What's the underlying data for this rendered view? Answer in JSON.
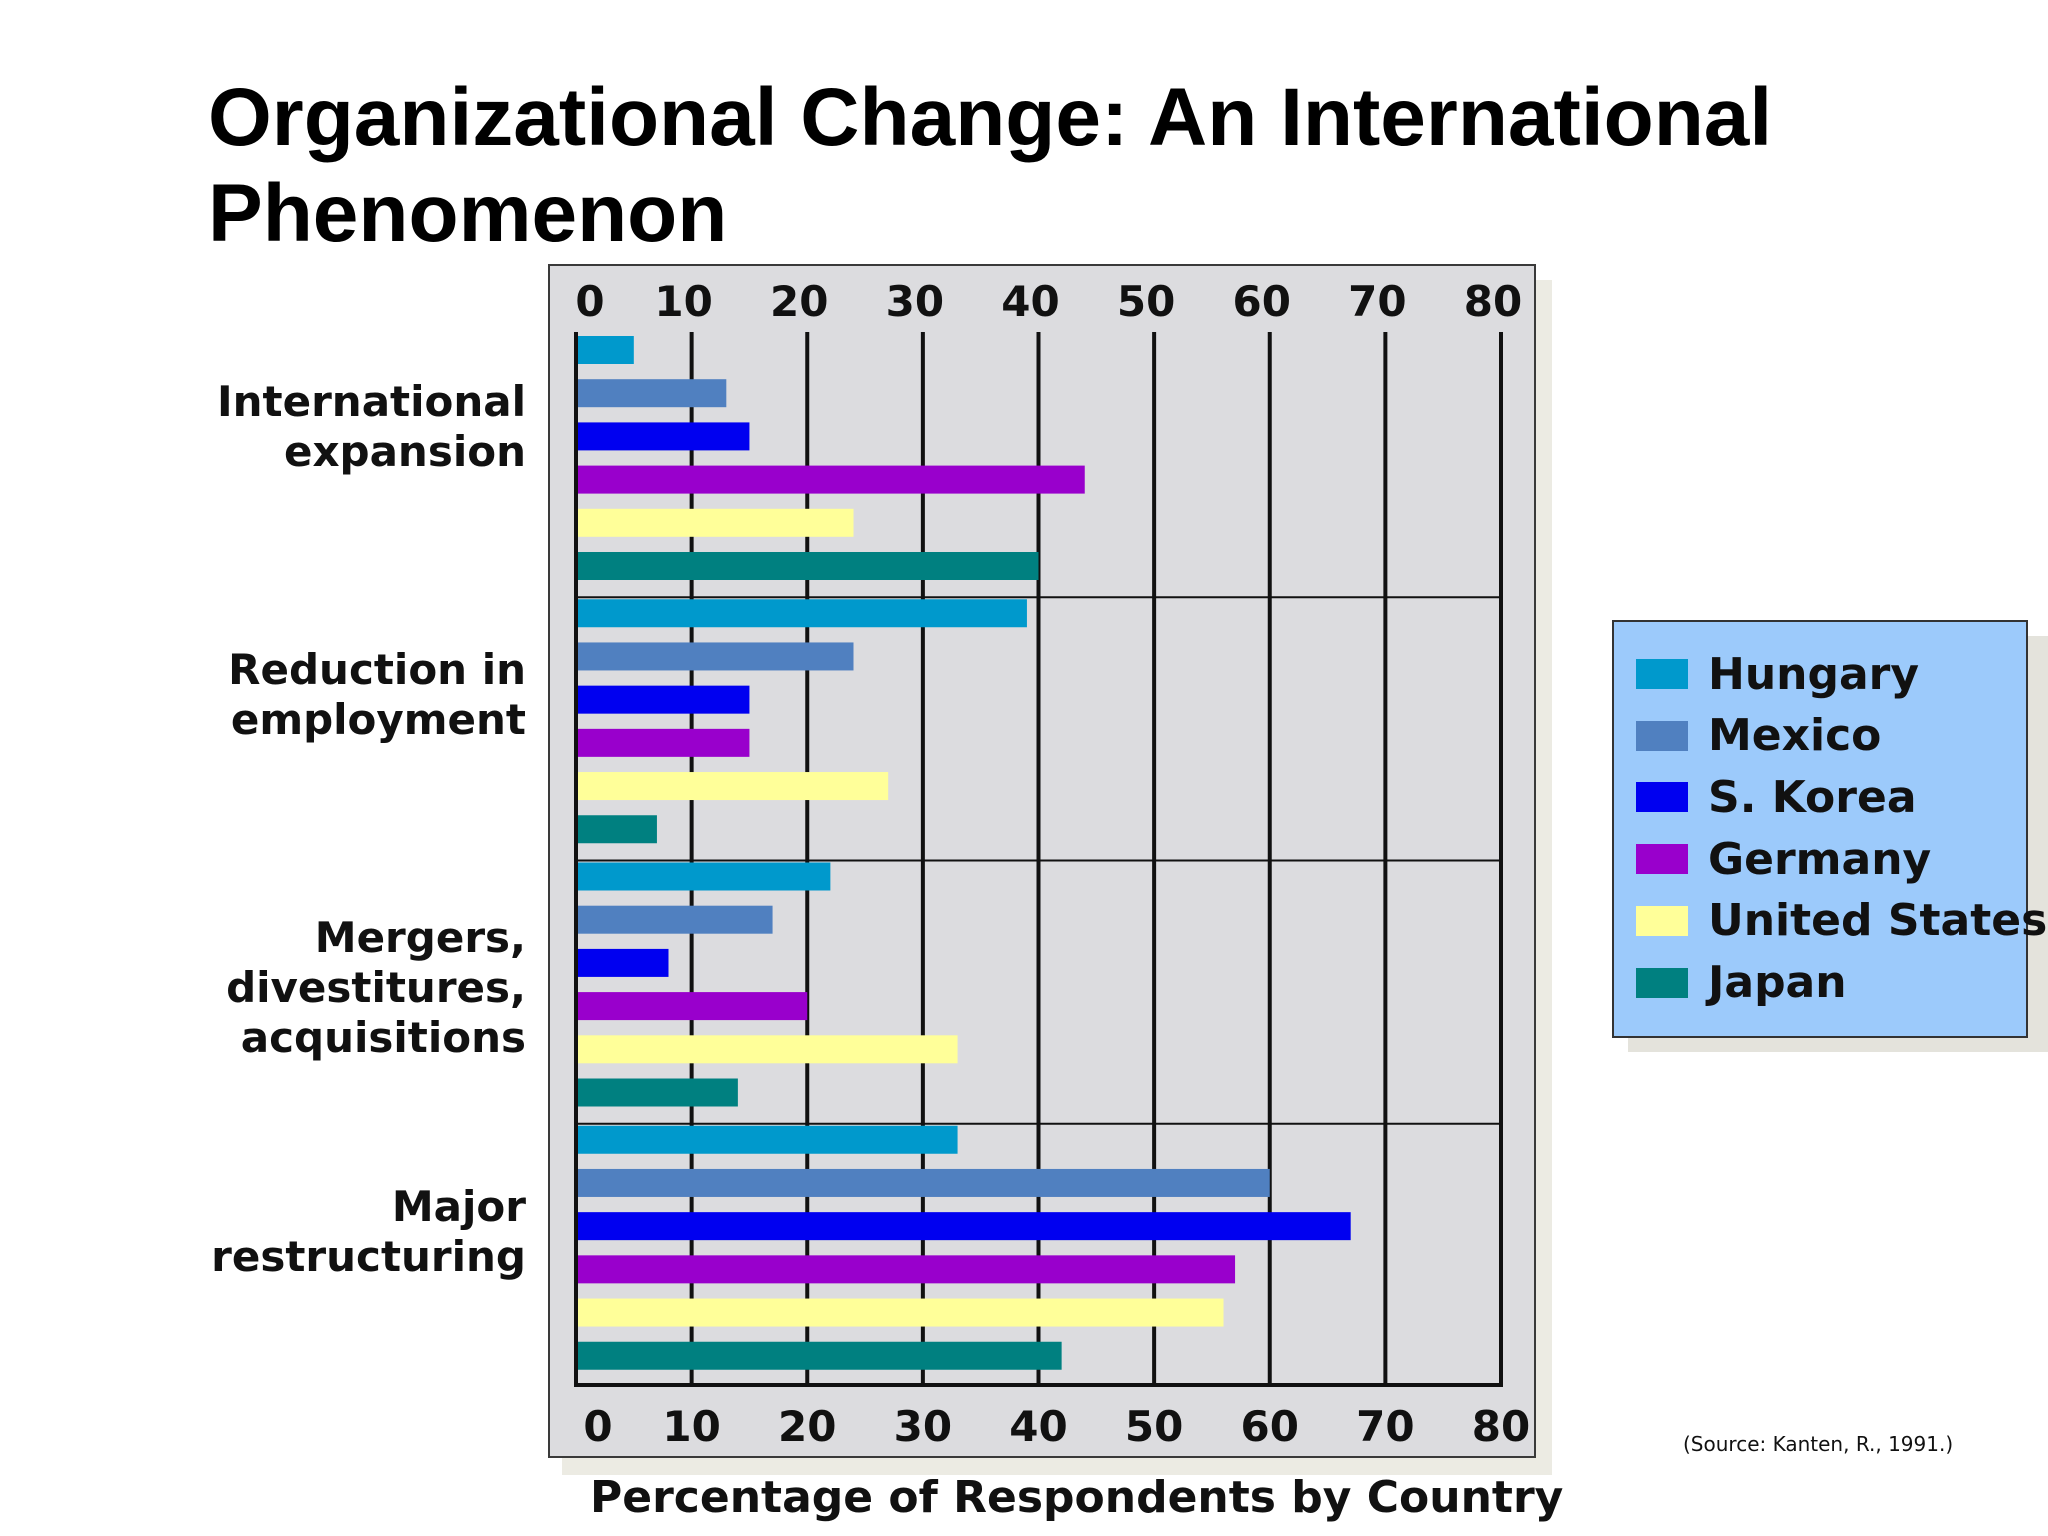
{
  "title_lines": [
    "Organizational Change: An International",
    "Phenomenon"
  ],
  "source_note": "(Source: Kanten, R., 1991.)",
  "legend_entries": [
    "Hungary",
    "Mexico",
    "S. Korea",
    "Germany",
    "United States",
    "Japan"
  ],
  "colors": {
    "Hungary": "#0099cc",
    "Mexico": "#5080c0",
    "S. Korea": "#0000f0",
    "Germany": "#9900cc",
    "United States": "#ffff99",
    "Japan": "#008080",
    "plot_background": "#dcdcdf",
    "legend_background": "#9ccafb"
  },
  "chart_data": {
    "type": "bar",
    "orientation": "horizontal",
    "title": "Organizational Change: An International Phenomenon",
    "xlabel": "Percentage of Respondents by Country",
    "ylabel": "",
    "xlim": [
      0,
      80
    ],
    "x_ticks": [
      0,
      10,
      20,
      30,
      40,
      50,
      60,
      70,
      80
    ],
    "x_tick_labels": [
      "0",
      "10",
      "20",
      "30",
      "40",
      "50",
      "60",
      "70",
      "80"
    ],
    "grid": "vertical lines at ticks; horizontal separators between categories",
    "tick_labels_position": "top and bottom",
    "legend_position": "right",
    "category_labels": [
      [
        "International",
        "expansion"
      ],
      [
        "Reduction in",
        "employment"
      ],
      [
        "Mergers,",
        "divestitures,",
        "acquisitions"
      ],
      [
        "Major",
        "restructuring"
      ]
    ],
    "categories": [
      "International expansion",
      "Reduction in employment",
      "Mergers, divestitures, acquisitions",
      "Major restructuring"
    ],
    "series": [
      {
        "name": "Hungary",
        "values": [
          5,
          39,
          22,
          33
        ]
      },
      {
        "name": "Mexico",
        "values": [
          13,
          24,
          17,
          60
        ]
      },
      {
        "name": "S. Korea",
        "values": [
          15,
          15,
          8,
          67
        ]
      },
      {
        "name": "Germany",
        "values": [
          44,
          15,
          20,
          57
        ]
      },
      {
        "name": "United States",
        "values": [
          24,
          27,
          33,
          56
        ]
      },
      {
        "name": "Japan",
        "values": [
          40,
          7,
          14,
          42
        ]
      }
    ]
  }
}
